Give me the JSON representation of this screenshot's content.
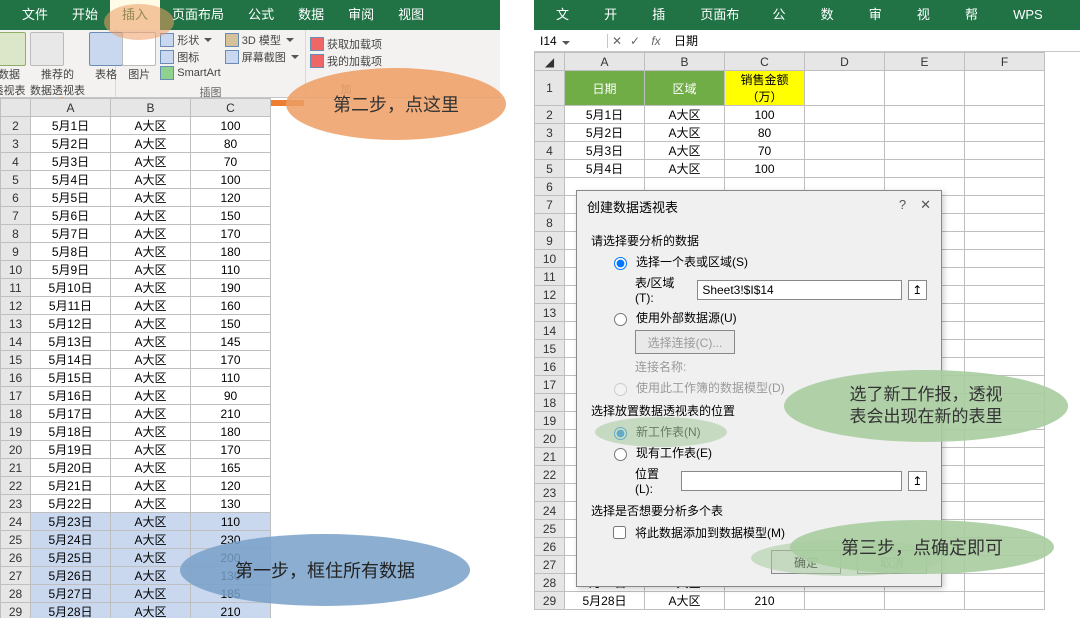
{
  "left": {
    "tabs": [
      "文件",
      "开始",
      "插入",
      "页面布局",
      "公式",
      "数据",
      "审阅",
      "视图"
    ],
    "active_tab_index": 2,
    "ribbon": {
      "group1": {
        "pivot_label": "数据\n透视表",
        "rec_label": "推荐的\n数据透视表",
        "tbl_label": "表格",
        "section": "表格"
      },
      "group2": {
        "pic": "图片",
        "shapes": "形状",
        "icons": "图标",
        "smartart": "SmartArt",
        "model3d": "3D 模型",
        "screenshot": "屏幕截图",
        "section": "插图"
      },
      "group3": {
        "get": "获取加载项",
        "mine": "我的加载项",
        "sd": "加"
      }
    },
    "columns": [
      "A",
      "B",
      "C"
    ],
    "header_row": [
      "日期",
      "区域",
      "销售金额（万）"
    ],
    "rows": [
      [
        "5月1日",
        "A大区",
        "100"
      ],
      [
        "5月2日",
        "A大区",
        "80"
      ],
      [
        "5月3日",
        "A大区",
        "70"
      ],
      [
        "5月4日",
        "A大区",
        "100"
      ],
      [
        "5月5日",
        "A大区",
        "120"
      ],
      [
        "5月6日",
        "A大区",
        "150"
      ],
      [
        "5月7日",
        "A大区",
        "170"
      ],
      [
        "5月8日",
        "A大区",
        "180"
      ],
      [
        "5月9日",
        "A大区",
        "110"
      ],
      [
        "5月10日",
        "A大区",
        "190"
      ],
      [
        "5月11日",
        "A大区",
        "160"
      ],
      [
        "5月12日",
        "A大区",
        "150"
      ],
      [
        "5月13日",
        "A大区",
        "145"
      ],
      [
        "5月14日",
        "A大区",
        "170"
      ],
      [
        "5月15日",
        "A大区",
        "110"
      ],
      [
        "5月16日",
        "A大区",
        "90"
      ],
      [
        "5月17日",
        "A大区",
        "210"
      ],
      [
        "5月18日",
        "A大区",
        "180"
      ],
      [
        "5月19日",
        "A大区",
        "170"
      ],
      [
        "5月20日",
        "A大区",
        "165"
      ],
      [
        "5月21日",
        "A大区",
        "120"
      ],
      [
        "5月22日",
        "A大区",
        "130"
      ],
      [
        "5月23日",
        "A大区",
        "110"
      ],
      [
        "5月24日",
        "A大区",
        "230"
      ],
      [
        "5月25日",
        "A大区",
        "200"
      ],
      [
        "5月26日",
        "A大区",
        "130"
      ],
      [
        "5月27日",
        "A大区",
        "185"
      ],
      [
        "5月28日",
        "A大区",
        "210"
      ]
    ],
    "callout_step2": "第二步，点这里",
    "callout_step1": "第一步，框住所有数据"
  },
  "right": {
    "tabs": [
      "文件",
      "开始",
      "插入",
      "页面布局",
      "公式",
      "数据",
      "审阅",
      "视图",
      "帮助",
      "WPS PDF"
    ],
    "namebox": "I14",
    "fx_value": "日期",
    "columns": [
      "A",
      "B",
      "C",
      "D",
      "E",
      "F"
    ],
    "header_row": [
      "日期",
      "区域",
      "销售金额（万）"
    ],
    "rows": [
      [
        "5月1日",
        "A大区",
        "100"
      ],
      [
        "5月2日",
        "A大区",
        "80"
      ],
      [
        "5月3日",
        "A大区",
        "70"
      ],
      [
        "5月4日",
        "A大区",
        "100"
      ]
    ],
    "tail_rows": [
      [
        "5月27日",
        "A大区",
        "185"
      ],
      [
        "5月28日",
        "A大区",
        "210"
      ]
    ],
    "dialog": {
      "title": "创建数据透视表",
      "sec1": "请选择要分析的数据",
      "opt_range": "选择一个表或区域(S)",
      "range_lbl": "表/区域(T):",
      "range_val": "Sheet3!$I$14",
      "opt_ext": "使用外部数据源(U)",
      "btn_conn": "选择连接(C)...",
      "conn_name": "连接名称:",
      "opt_model": "使用此工作簿的数据模型(D)",
      "sec2": "选择放置数据透视表的位置",
      "opt_newsheet": "新工作表(N)",
      "opt_cursheet": "现有工作表(E)",
      "loc_lbl": "位置(L):",
      "sec3": "选择是否想要分析多个表",
      "chk_add": "将此数据添加到数据模型(M)",
      "ok": "确定",
      "cancel": "取消"
    },
    "callout_green1a": "选了新工作报，透视",
    "callout_green1b": "表会出现在新的表里",
    "callout_green2": "第三步，点确定即可"
  },
  "colors": {
    "ribbon": "#217346",
    "orange": "#ec7d31",
    "blue": "#6f93b8",
    "green": "#a8cca0",
    "hdr_green": "#70ad47",
    "hdr_yellow": "#ffff00"
  }
}
